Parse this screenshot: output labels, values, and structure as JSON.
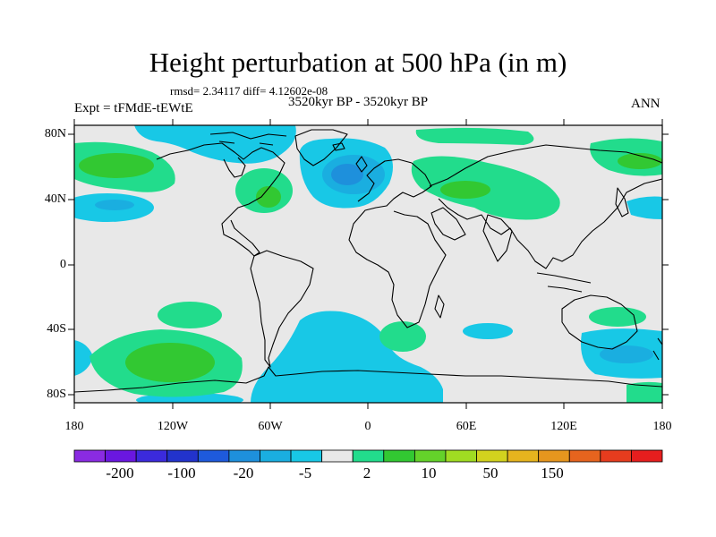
{
  "header": {
    "title": "Height perturbation at 500 hPa (in m)",
    "stats": "rmsd= 2.34117  diff= 4.12602e-08",
    "period": "3520kyr BP - 3520kyr BP",
    "experiment": "Expt = tFMdE-tEWtE",
    "season": "ANN"
  },
  "axes": {
    "lat_labels": [
      "80N",
      "40N",
      "0",
      "40S",
      "80S"
    ],
    "lon_labels": [
      "180",
      "120W",
      "60W",
      "0",
      "60E",
      "120E",
      "180"
    ]
  },
  "colorbar": {
    "colors": [
      "#8a2be2",
      "#6a17e0",
      "#3b2adc",
      "#2233cc",
      "#1e5adc",
      "#1e90dc",
      "#1aaee0",
      "#18c8e6",
      "#e8e8e8",
      "#22dc8c",
      "#32c832",
      "#64d22a",
      "#a0dc22",
      "#d2d21e",
      "#e6b41e",
      "#e6961e",
      "#e6641e",
      "#e63c1e",
      "#e61e1e"
    ],
    "labels": [
      "-200",
      "-100",
      "-20",
      "-5",
      "2",
      "10",
      "50",
      "150"
    ]
  },
  "map": {
    "background_color": "#e8e8e8",
    "coastline_color": "#000000"
  }
}
